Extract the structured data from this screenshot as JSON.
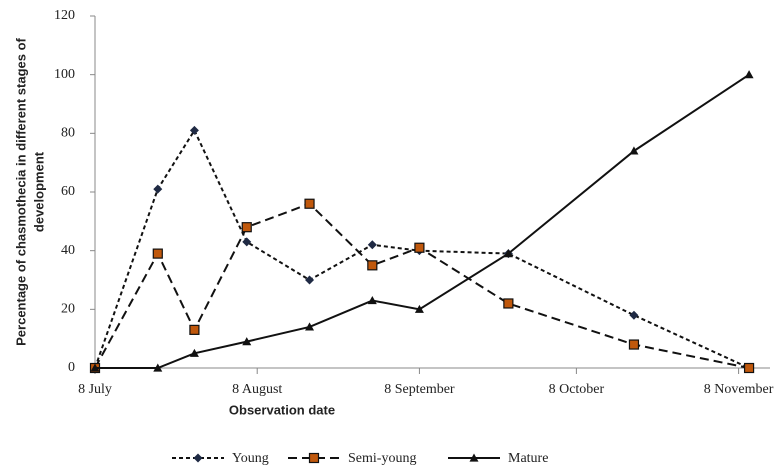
{
  "chart_data": {
    "type": "line",
    "xlabel": "Observation date",
    "ylabel": [
      "Percentage of chasmothecia in different stages of",
      "development"
    ],
    "x": [
      0,
      12,
      19,
      29,
      41,
      53,
      62,
      79,
      103,
      125
    ],
    "xlim": [
      0,
      129
    ],
    "xticks": [
      {
        "value": 0,
        "label": "8 July"
      },
      {
        "value": 31,
        "label": "8 August"
      },
      {
        "value": 62,
        "label": "8 September"
      },
      {
        "value": 92,
        "label": "8 October"
      },
      {
        "value": 123,
        "label": "8 November"
      }
    ],
    "ylim": [
      0,
      120
    ],
    "yticks": [
      0,
      20,
      40,
      60,
      80,
      100,
      120
    ],
    "grid": false,
    "legend": "bottom",
    "series": [
      {
        "name": "Young",
        "color": "#1f2a44",
        "marker": "diamond",
        "dash": "4,3",
        "values": [
          0,
          61,
          81,
          43,
          30,
          42,
          40,
          39,
          18,
          0
        ]
      },
      {
        "name": "Semi-young",
        "color": "#c0580c",
        "marker": "square",
        "dash": "9,5",
        "values": [
          0,
          39,
          13,
          48,
          56,
          35,
          41,
          22,
          8,
          0
        ]
      },
      {
        "name": "Mature",
        "color": "#111111",
        "marker": "triangle",
        "dash": "none",
        "values": [
          0,
          0,
          5,
          9,
          14,
          23,
          20,
          39,
          74,
          100
        ]
      }
    ]
  }
}
